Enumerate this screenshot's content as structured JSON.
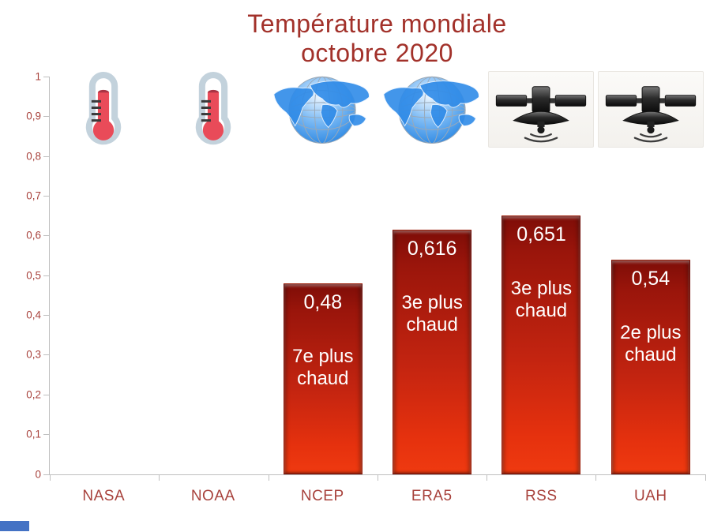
{
  "title": {
    "line1": "Température mondiale",
    "line2": "octobre 2020"
  },
  "chart_data": {
    "type": "bar",
    "title": "Température mondiale octobre 2020",
    "categories": [
      "NASA",
      "NOAA",
      "NCEP",
      "ERA5",
      "RSS",
      "UAH"
    ],
    "values": [
      null,
      null,
      0.48,
      0.616,
      0.651,
      0.54
    ],
    "value_labels": [
      "",
      "",
      "0,48",
      "0,616",
      "0,651",
      "0,54"
    ],
    "rank_labels": [
      "",
      "",
      "7e plus chaud",
      "3e plus chaud",
      "3e plus chaud",
      "2e plus chaud"
    ],
    "icons": [
      "thermometer",
      "thermometer",
      "globe",
      "globe",
      "satellite",
      "satellite"
    ],
    "ylabel": "",
    "xlabel": "",
    "ylim": [
      0,
      1
    ],
    "yticks": [
      "1",
      "0,9",
      "0,8",
      "0,7",
      "0,6",
      "0,5",
      "0,4",
      "0,3",
      "0,2",
      "0,1",
      "0"
    ],
    "grid": false,
    "legend": false,
    "bar_color_top": "#7E0D07",
    "bar_color_bottom": "#EF3A10",
    "label_color": "#A8423C",
    "title_color": "#A2312A",
    "axis_color": "#BFBFBF"
  },
  "accent": {
    "bottom_left_color": "#4472C4"
  }
}
